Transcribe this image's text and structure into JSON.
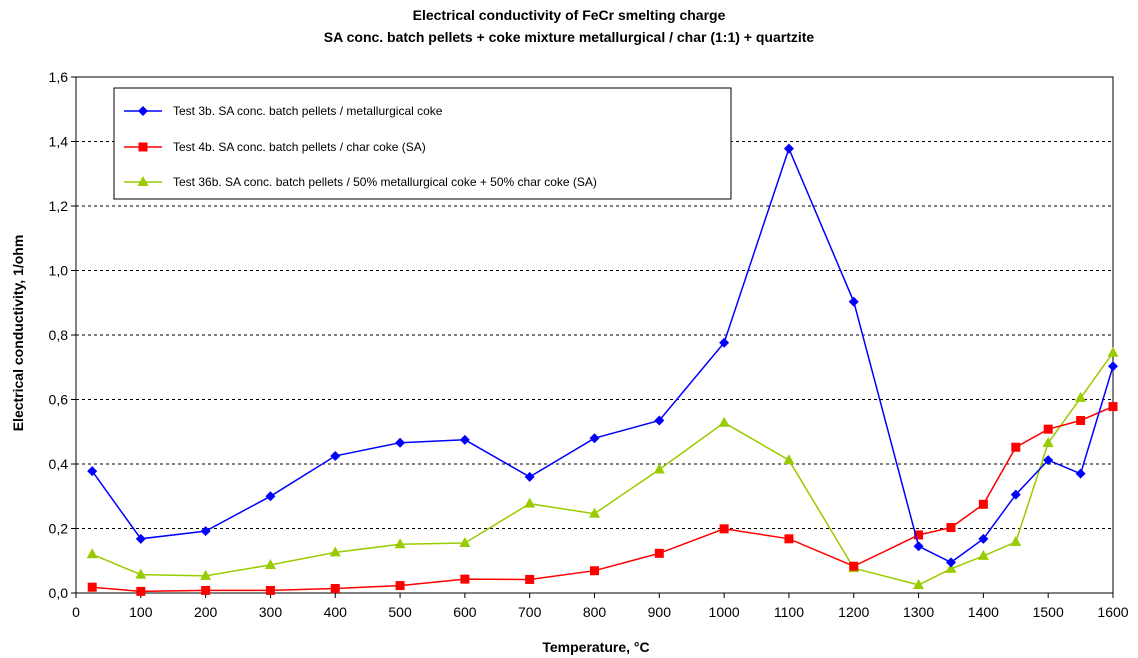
{
  "chart_data": {
    "type": "line",
    "title": "Electrical conductivity of FeCr smelting charge",
    "subtitle": "SA conc. batch pellets + coke mixture metallurgical / char (1:1) + quartzite",
    "xlabel": "Temperature, °C",
    "ylabel": "Electrical conductivity, 1/ohm",
    "xlim": [
      0,
      1600
    ],
    "ylim": [
      0,
      1.6
    ],
    "x_ticks": [
      0,
      100,
      200,
      300,
      400,
      500,
      600,
      700,
      800,
      900,
      1000,
      1100,
      1200,
      1300,
      1400,
      1500,
      1600
    ],
    "x_tick_labels": [
      "0",
      "100",
      "200",
      "300",
      "400",
      "500",
      "600",
      "700",
      "800",
      "900",
      "1000",
      "1100",
      "1200",
      "1300",
      "1400",
      "1500",
      "1600"
    ],
    "y_ticks": [
      0,
      0.2,
      0.4,
      0.6,
      0.8,
      1.0,
      1.2,
      1.4,
      1.6
    ],
    "y_tick_labels": [
      "0,0",
      "0,2",
      "0,4",
      "0,6",
      "0,8",
      "1,0",
      "1,2",
      "1,4",
      "1,6"
    ],
    "grid": "horizontal dashed",
    "legend_position": "top-left, inside plot",
    "series": [
      {
        "name": "Test 3b. SA conc. batch pellets / metallurgical coke",
        "color": "#0000ff",
        "marker": "diamond",
        "x": [
          25,
          100,
          200,
          300,
          400,
          500,
          600,
          700,
          800,
          900,
          1000,
          1100,
          1200,
          1300,
          1350,
          1400,
          1450,
          1500,
          1550,
          1600
        ],
        "y": [
          0.378,
          0.168,
          0.192,
          0.3,
          0.425,
          0.466,
          0.475,
          0.36,
          0.48,
          0.535,
          0.776,
          1.378,
          0.903,
          0.145,
          0.095,
          0.168,
          0.305,
          0.412,
          0.37,
          0.703
        ]
      },
      {
        "name": "Test 4b. SA conc. batch pellets / char coke (SA)",
        "color": "#ff0000",
        "marker": "square",
        "x": [
          25,
          100,
          200,
          300,
          400,
          500,
          600,
          700,
          800,
          900,
          1000,
          1100,
          1200,
          1300,
          1350,
          1400,
          1450,
          1500,
          1550,
          1600
        ],
        "y": [
          0.018,
          0.005,
          0.008,
          0.008,
          0.014,
          0.023,
          0.043,
          0.042,
          0.069,
          0.123,
          0.199,
          0.168,
          0.083,
          0.18,
          0.203,
          0.275,
          0.452,
          0.508,
          0.535,
          0.578
        ]
      },
      {
        "name": "Test 36b. SA conc. batch pellets / 50% metallurgical coke + 50% char coke (SA)",
        "color": "#99cc00",
        "marker": "triangle",
        "x": [
          25,
          100,
          200,
          300,
          400,
          500,
          600,
          700,
          800,
          900,
          1000,
          1100,
          1200,
          1300,
          1350,
          1400,
          1450,
          1500,
          1550,
          1600
        ],
        "y": [
          0.12,
          0.057,
          0.053,
          0.087,
          0.126,
          0.151,
          0.155,
          0.277,
          0.246,
          0.383,
          0.528,
          0.412,
          0.077,
          0.025,
          0.075,
          0.115,
          0.158,
          0.465,
          0.605,
          0.745
        ]
      }
    ]
  }
}
